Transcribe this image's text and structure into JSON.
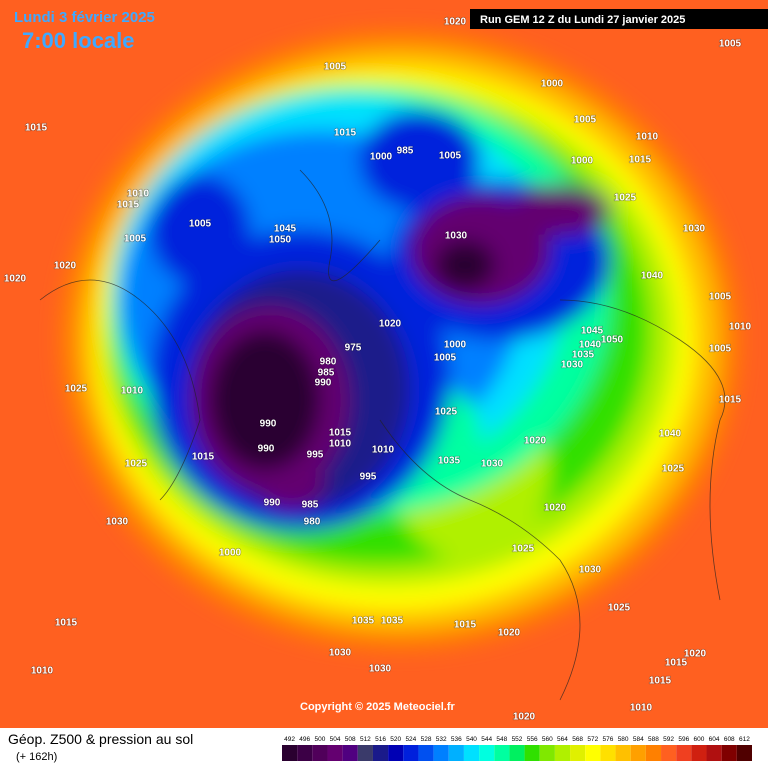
{
  "header": {
    "date": "Lundi 3 février 2025",
    "time": "7:00 locale",
    "run": "Run GEM 12 Z du Lundi 27 janvier 2025"
  },
  "copyright": "Copyright © 2025 Meteociel.fr",
  "legend": {
    "title": "Géop. Z500 & pression au sol",
    "lead": "(+ 162h)",
    "scale": [
      492,
      496,
      500,
      504,
      508,
      512,
      516,
      520,
      524,
      528,
      532,
      536,
      540,
      544,
      548,
      552,
      556,
      560,
      564,
      568,
      572,
      576,
      580,
      584,
      588,
      592,
      596,
      600,
      604,
      608,
      612
    ],
    "colors": [
      "#2a0030",
      "#3c0046",
      "#50005a",
      "#640070",
      "#500080",
      "#3a3a6a",
      "#1a1a8a",
      "#0000b4",
      "#0020dc",
      "#0050f0",
      "#0080ff",
      "#00b0ff",
      "#00e0ff",
      "#00ffe0",
      "#00ffa0",
      "#00f060",
      "#30e000",
      "#80e800",
      "#b0f000",
      "#e0f000",
      "#ffff00",
      "#ffe000",
      "#ffc000",
      "#ffa000",
      "#ff8000",
      "#ff6020",
      "#f04020",
      "#d02010",
      "#b01010",
      "#800000",
      "#500000"
    ]
  },
  "pressure_labels": [
    1020,
    1005,
    1005,
    1000,
    1015,
    1015,
    985,
    1000,
    1005,
    1005,
    1010,
    1000,
    1015,
    1010,
    1015,
    1005,
    1005,
    1045,
    1050,
    1025,
    1030,
    1030,
    1020,
    1020,
    1040,
    1005,
    1010,
    1020,
    1045,
    1040,
    1035,
    1030,
    1050,
    1005,
    975,
    980,
    985,
    990,
    1000,
    1005,
    1025,
    1010,
    1015,
    1025,
    990,
    1015,
    1010,
    1020,
    1040,
    990,
    995,
    1010,
    1015,
    1025,
    1035,
    1030,
    1025,
    995,
    990,
    985,
    1020,
    1030,
    980,
    1025,
    1000,
    1030,
    1025,
    1015,
    1035,
    1035,
    1015,
    1020,
    1030,
    1020,
    1030,
    1015,
    1010,
    1015,
    1010,
    1020
  ]
}
